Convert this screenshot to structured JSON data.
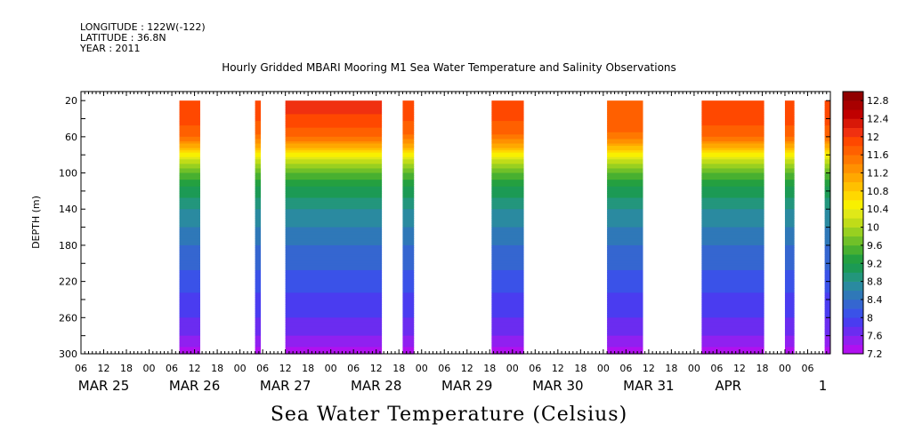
{
  "header": {
    "longitude": "LONGITUDE : 122W(-122)",
    "latitude": "LATITUDE : 36.8N",
    "year": "YEAR : 2011"
  },
  "chart_data": {
    "type": "heatmap",
    "title": "Hourly Gridded MBARI Mooring M1 Sea Water Temperature and Salinity Observations",
    "xlabel": "Sea Water Temperature (Celsius)",
    "ylabel": "DEPTH (m)",
    "y_axis": {
      "ticks": [
        20,
        60,
        100,
        140,
        180,
        220,
        260,
        300
      ],
      "range": [
        10,
        300
      ],
      "inverted": true
    },
    "x_axis": {
      "range_hours": [
        0,
        198
      ],
      "hour_tick_labels": [
        "06",
        "12",
        "18",
        "00",
        "06",
        "12",
        "18",
        "00",
        "06",
        "12",
        "18",
        "00",
        "06",
        "12",
        "18",
        "00",
        "06",
        "12",
        "18",
        "00",
        "06",
        "12",
        "18",
        "00",
        "06",
        "12",
        "18",
        "00",
        "06",
        "12",
        "18",
        "00",
        "06"
      ],
      "date_labels": [
        "MAR 25",
        "MAR 26",
        "MAR 27",
        "MAR 28",
        "MAR 29",
        "MAR 30",
        "MAR 31",
        "APR",
        "1"
      ]
    },
    "colorbar": {
      "labels": [
        "12.8",
        "12.4",
        "12",
        "11.6",
        "11.2",
        "10.8",
        "10.4",
        "10",
        "9.6",
        "9.2",
        "8.8",
        "8.4",
        "8",
        "7.6",
        "7.2"
      ],
      "levels": [
        7.2,
        7.4,
        7.6,
        7.8,
        8.0,
        8.2,
        8.4,
        8.6,
        8.8,
        9.0,
        9.2,
        9.4,
        9.6,
        9.8,
        10.0,
        10.2,
        10.4,
        10.6,
        10.8,
        11.0,
        11.2,
        11.4,
        11.6,
        11.8,
        12.0,
        12.2,
        12.4,
        12.6,
        12.8,
        13.0
      ],
      "colors": [
        "#b010f0",
        "#9020f0",
        "#6b2cf0",
        "#4a3cf0",
        "#3a52e8",
        "#3566d0",
        "#2f78b8",
        "#2a8aa0",
        "#23967c",
        "#1c9a55",
        "#24a040",
        "#48b030",
        "#70c028",
        "#98d020",
        "#c0dc18",
        "#e0e818",
        "#f8f000",
        "#ffd800",
        "#ffc000",
        "#ffa800",
        "#ff9000",
        "#ff7800",
        "#ff6000",
        "#ff4800",
        "#f03010",
        "#d81808",
        "#c00000",
        "#a80000",
        "#900000"
      ]
    },
    "observation_segments": [
      {
        "start_hour": 26.0,
        "end_hour": 31.5,
        "surface_temp": 12.0
      },
      {
        "start_hour": 46.0,
        "end_hour": 47.5,
        "surface_temp": 11.9
      },
      {
        "start_hour": 54.0,
        "end_hour": 79.5,
        "surface_temp": 12.1
      },
      {
        "start_hour": 85.0,
        "end_hour": 88.0,
        "surface_temp": 11.9
      },
      {
        "start_hour": 108.5,
        "end_hour": 117.0,
        "surface_temp": 11.9
      },
      {
        "start_hour": 139.0,
        "end_hour": 148.5,
        "surface_temp": 11.8
      },
      {
        "start_hour": 164.0,
        "end_hour": 180.5,
        "surface_temp": 12.0
      },
      {
        "start_hour": 186.0,
        "end_hour": 188.5,
        "surface_temp": 12.0
      },
      {
        "start_hour": 196.5,
        "end_hour": 198.0,
        "surface_temp": 12.0
      }
    ],
    "profile": {
      "depths": [
        20,
        40,
        60,
        70,
        80,
        90,
        100,
        120,
        140,
        160,
        180,
        200,
        220,
        240,
        260,
        280,
        300
      ],
      "temps": [
        12.0,
        11.9,
        11.6,
        11.1,
        10.5,
        10.0,
        9.6,
        9.1,
        8.8,
        8.6,
        8.4,
        8.25,
        8.1,
        7.95,
        7.8,
        7.6,
        7.3
      ]
    }
  }
}
